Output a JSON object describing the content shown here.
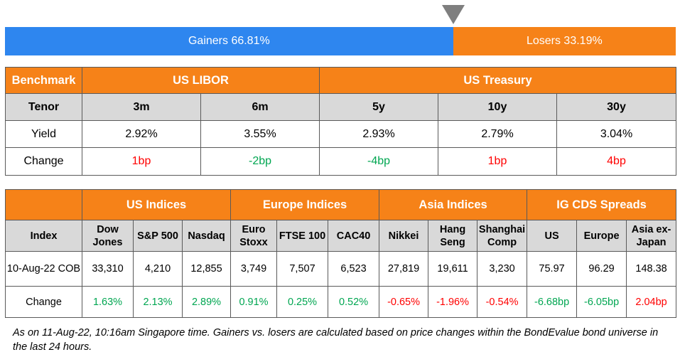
{
  "breadth": {
    "gainers_label": "Gainers 66.81%",
    "losers_label": "Losers 33.19%",
    "gainers_pct": 66.81,
    "losers_pct": 33.19,
    "gainers_color": "#2e86ef",
    "losers_color": "#f68218",
    "pointer_color": "#7f7f7f"
  },
  "rates": {
    "benchmark_label": "Benchmark",
    "groups": [
      "US LIBOR",
      "US Treasury"
    ],
    "tenor_label": "Tenor",
    "tenors": [
      "3m",
      "6m",
      "5y",
      "10y",
      "30y"
    ],
    "yield_label": "Yield",
    "yields": [
      "2.92%",
      "3.55%",
      "2.93%",
      "2.79%",
      "3.04%"
    ],
    "change_label": "Change",
    "changes": [
      {
        "text": "1bp",
        "dir": "neg"
      },
      {
        "text": "-2bp",
        "dir": "pos"
      },
      {
        "text": "-4bp",
        "dir": "pos"
      },
      {
        "text": "1bp",
        "dir": "neg"
      },
      {
        "text": "4bp",
        "dir": "neg"
      }
    ]
  },
  "indices": {
    "groups": [
      "US Indices",
      "Europe Indices",
      "Asia Indices",
      "IG CDS Spreads"
    ],
    "index_label": "Index",
    "names": [
      [
        "Dow",
        "Jones"
      ],
      [
        "S&P 500"
      ],
      [
        "Nasdaq"
      ],
      [
        "Euro",
        "Stoxx"
      ],
      [
        "FTSE 100"
      ],
      [
        "CAC40"
      ],
      [
        "Nikkei"
      ],
      [
        "Hang",
        "Seng"
      ],
      [
        "Shanghai",
        "Comp"
      ],
      [
        "US"
      ],
      [
        "Europe"
      ],
      [
        "Asia ex-",
        "Japan"
      ]
    ],
    "date_label": "10-Aug-22 COB",
    "values": [
      "33,310",
      "4,210",
      "12,855",
      "3,749",
      "7,507",
      "6,523",
      "27,819",
      "19,611",
      "3,230",
      "75.97",
      "96.29",
      "148.38"
    ],
    "change_label": "Change",
    "changes": [
      {
        "text": "1.63%",
        "dir": "pos"
      },
      {
        "text": "2.13%",
        "dir": "pos"
      },
      {
        "text": "2.89%",
        "dir": "pos"
      },
      {
        "text": "0.91%",
        "dir": "pos"
      },
      {
        "text": "0.25%",
        "dir": "pos"
      },
      {
        "text": "0.52%",
        "dir": "pos"
      },
      {
        "text": "-0.65%",
        "dir": "neg"
      },
      {
        "text": "-1.96%",
        "dir": "neg"
      },
      {
        "text": "-0.54%",
        "dir": "neg"
      },
      {
        "text": "-6.68bp",
        "dir": "pos"
      },
      {
        "text": "-6.05bp",
        "dir": "pos"
      },
      {
        "text": "2.04bp",
        "dir": "neg"
      }
    ]
  },
  "footnote": "As on 11-Aug-22, 10:16am Singapore time. Gainers vs. losers are calculated based on price changes within the BondEvalue bond universe in the last 24 hours.",
  "colors": {
    "header_orange": "#f68218",
    "subheader_gray": "#d9d9d9",
    "positive_green": "#00a651",
    "negative_red": "#ff0000"
  }
}
